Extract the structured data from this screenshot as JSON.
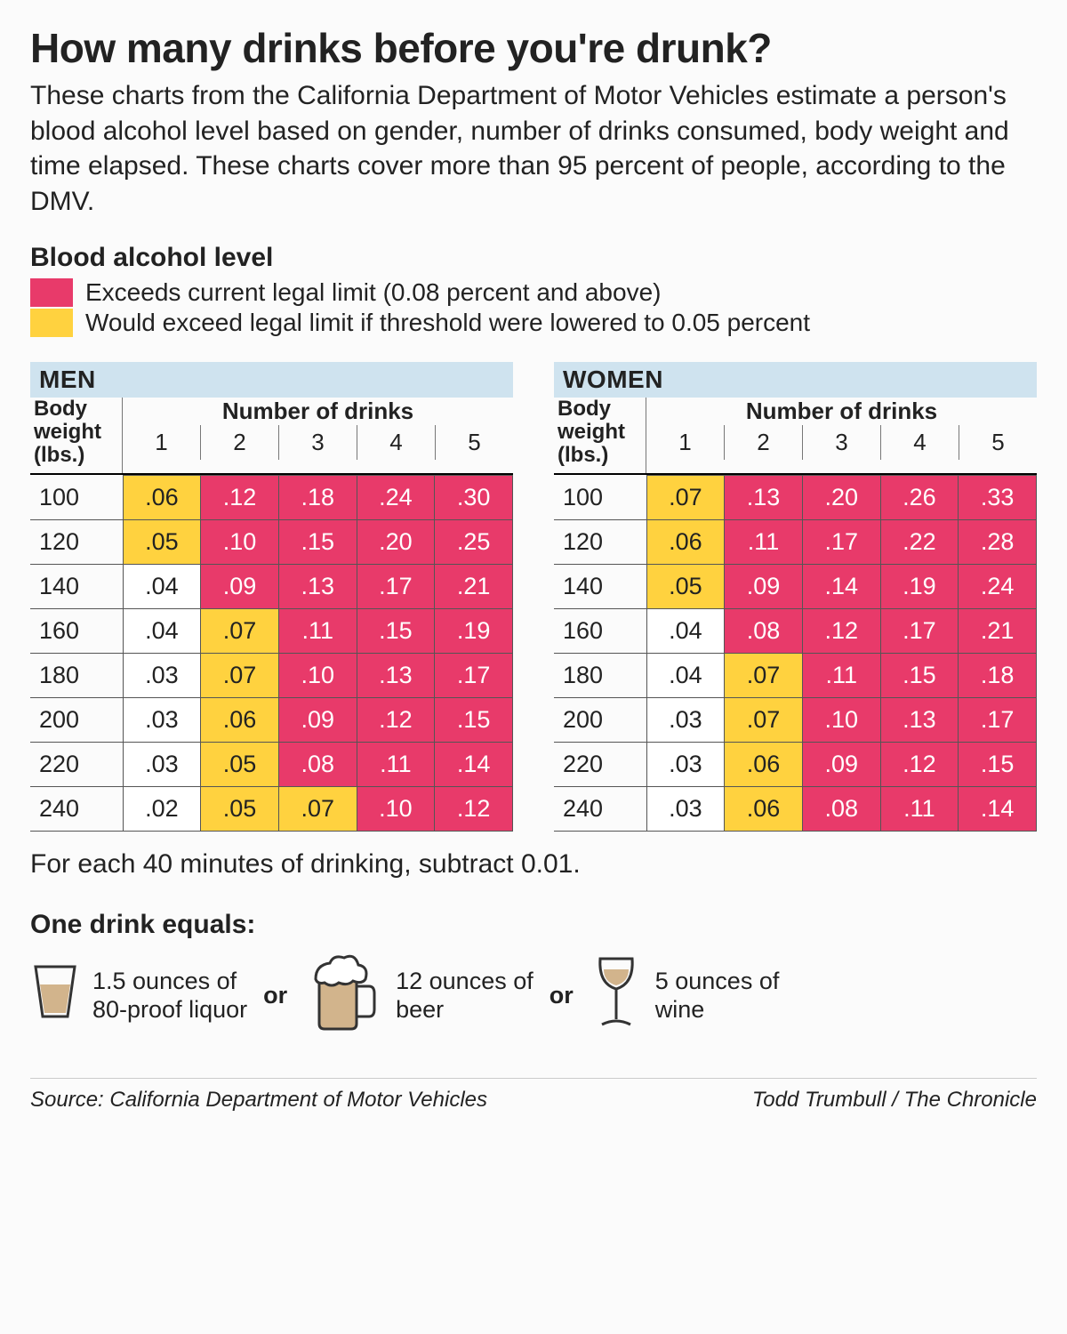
{
  "colors": {
    "exceeds": "#e83a6a",
    "wouldExceed": "#ffd23f",
    "none": "#ffffff",
    "headerBand": "#cfe3ef",
    "text": "#222222",
    "border": "#555555"
  },
  "title": "How many drinks before you're drunk?",
  "intro": "These charts from the California Department of Motor Vehicles estimate a person's blood alcohol level based on gender, number of drinks consumed, body weight and time elapsed. These charts cover more than 95 percent of people, according to the DMV.",
  "legend": {
    "title": "Blood alcohol level",
    "items": [
      {
        "colorKey": "exceeds",
        "label": "Exceeds current legal limit (0.08 percent and above)"
      },
      {
        "colorKey": "wouldExceed",
        "label": "Would exceed legal limit if threshold were lowered to 0.05 percent"
      }
    ]
  },
  "tables": {
    "columns_label": "Number of drinks",
    "body_weight_label": "Body weight (lbs.)",
    "drink_counts": [
      "1",
      "2",
      "3",
      "4",
      "5"
    ],
    "weights": [
      "100",
      "120",
      "140",
      "160",
      "180",
      "200",
      "220",
      "240"
    ],
    "men": {
      "label": "MEN",
      "rows": [
        [
          {
            "v": ".06",
            "c": "wouldExceed"
          },
          {
            "v": ".12",
            "c": "exceeds"
          },
          {
            "v": ".18",
            "c": "exceeds"
          },
          {
            "v": ".24",
            "c": "exceeds"
          },
          {
            "v": ".30",
            "c": "exceeds"
          }
        ],
        [
          {
            "v": ".05",
            "c": "wouldExceed"
          },
          {
            "v": ".10",
            "c": "exceeds"
          },
          {
            "v": ".15",
            "c": "exceeds"
          },
          {
            "v": ".20",
            "c": "exceeds"
          },
          {
            "v": ".25",
            "c": "exceeds"
          }
        ],
        [
          {
            "v": ".04",
            "c": "none"
          },
          {
            "v": ".09",
            "c": "exceeds"
          },
          {
            "v": ".13",
            "c": "exceeds"
          },
          {
            "v": ".17",
            "c": "exceeds"
          },
          {
            "v": ".21",
            "c": "exceeds"
          }
        ],
        [
          {
            "v": ".04",
            "c": "none"
          },
          {
            "v": ".07",
            "c": "wouldExceed"
          },
          {
            "v": ".11",
            "c": "exceeds"
          },
          {
            "v": ".15",
            "c": "exceeds"
          },
          {
            "v": ".19",
            "c": "exceeds"
          }
        ],
        [
          {
            "v": ".03",
            "c": "none"
          },
          {
            "v": ".07",
            "c": "wouldExceed"
          },
          {
            "v": ".10",
            "c": "exceeds"
          },
          {
            "v": ".13",
            "c": "exceeds"
          },
          {
            "v": ".17",
            "c": "exceeds"
          }
        ],
        [
          {
            "v": ".03",
            "c": "none"
          },
          {
            "v": ".06",
            "c": "wouldExceed"
          },
          {
            "v": ".09",
            "c": "exceeds"
          },
          {
            "v": ".12",
            "c": "exceeds"
          },
          {
            "v": ".15",
            "c": "exceeds"
          }
        ],
        [
          {
            "v": ".03",
            "c": "none"
          },
          {
            "v": ".05",
            "c": "wouldExceed"
          },
          {
            "v": ".08",
            "c": "exceeds"
          },
          {
            "v": ".11",
            "c": "exceeds"
          },
          {
            "v": ".14",
            "c": "exceeds"
          }
        ],
        [
          {
            "v": ".02",
            "c": "none"
          },
          {
            "v": ".05",
            "c": "wouldExceed"
          },
          {
            "v": ".07",
            "c": "wouldExceed"
          },
          {
            "v": ".10",
            "c": "exceeds"
          },
          {
            "v": ".12",
            "c": "exceeds"
          }
        ]
      ]
    },
    "women": {
      "label": "WOMEN",
      "rows": [
        [
          {
            "v": ".07",
            "c": "wouldExceed"
          },
          {
            "v": ".13",
            "c": "exceeds"
          },
          {
            "v": ".20",
            "c": "exceeds"
          },
          {
            "v": ".26",
            "c": "exceeds"
          },
          {
            "v": ".33",
            "c": "exceeds"
          }
        ],
        [
          {
            "v": ".06",
            "c": "wouldExceed"
          },
          {
            "v": ".11",
            "c": "exceeds"
          },
          {
            "v": ".17",
            "c": "exceeds"
          },
          {
            "v": ".22",
            "c": "exceeds"
          },
          {
            "v": ".28",
            "c": "exceeds"
          }
        ],
        [
          {
            "v": ".05",
            "c": "wouldExceed"
          },
          {
            "v": ".09",
            "c": "exceeds"
          },
          {
            "v": ".14",
            "c": "exceeds"
          },
          {
            "v": ".19",
            "c": "exceeds"
          },
          {
            "v": ".24",
            "c": "exceeds"
          }
        ],
        [
          {
            "v": ".04",
            "c": "none"
          },
          {
            "v": ".08",
            "c": "exceeds"
          },
          {
            "v": ".12",
            "c": "exceeds"
          },
          {
            "v": ".17",
            "c": "exceeds"
          },
          {
            "v": ".21",
            "c": "exceeds"
          }
        ],
        [
          {
            "v": ".04",
            "c": "none"
          },
          {
            "v": ".07",
            "c": "wouldExceed"
          },
          {
            "v": ".11",
            "c": "exceeds"
          },
          {
            "v": ".15",
            "c": "exceeds"
          },
          {
            "v": ".18",
            "c": "exceeds"
          }
        ],
        [
          {
            "v": ".03",
            "c": "none"
          },
          {
            "v": ".07",
            "c": "wouldExceed"
          },
          {
            "v": ".10",
            "c": "exceeds"
          },
          {
            "v": ".13",
            "c": "exceeds"
          },
          {
            "v": ".17",
            "c": "exceeds"
          }
        ],
        [
          {
            "v": ".03",
            "c": "none"
          },
          {
            "v": ".06",
            "c": "wouldExceed"
          },
          {
            "v": ".09",
            "c": "exceeds"
          },
          {
            "v": ".12",
            "c": "exceeds"
          },
          {
            "v": ".15",
            "c": "exceeds"
          }
        ],
        [
          {
            "v": ".03",
            "c": "none"
          },
          {
            "v": ".06",
            "c": "wouldExceed"
          },
          {
            "v": ".08",
            "c": "exceeds"
          },
          {
            "v": ".11",
            "c": "exceeds"
          },
          {
            "v": ".14",
            "c": "exceeds"
          }
        ]
      ]
    }
  },
  "time_note": "For each 40 minutes of drinking, subtract 0.01.",
  "drink_eq": {
    "title": "One drink equals:",
    "or": "or",
    "items": [
      {
        "icon": "shot",
        "text": "1.5 ounces of 80-proof liquor"
      },
      {
        "icon": "beer",
        "text": "12 ounces of beer"
      },
      {
        "icon": "wine",
        "text": "5 ounces of wine"
      }
    ]
  },
  "source": "Source: California Department of Motor Vehicles",
  "credit": "Todd Trumbull / The Chronicle"
}
